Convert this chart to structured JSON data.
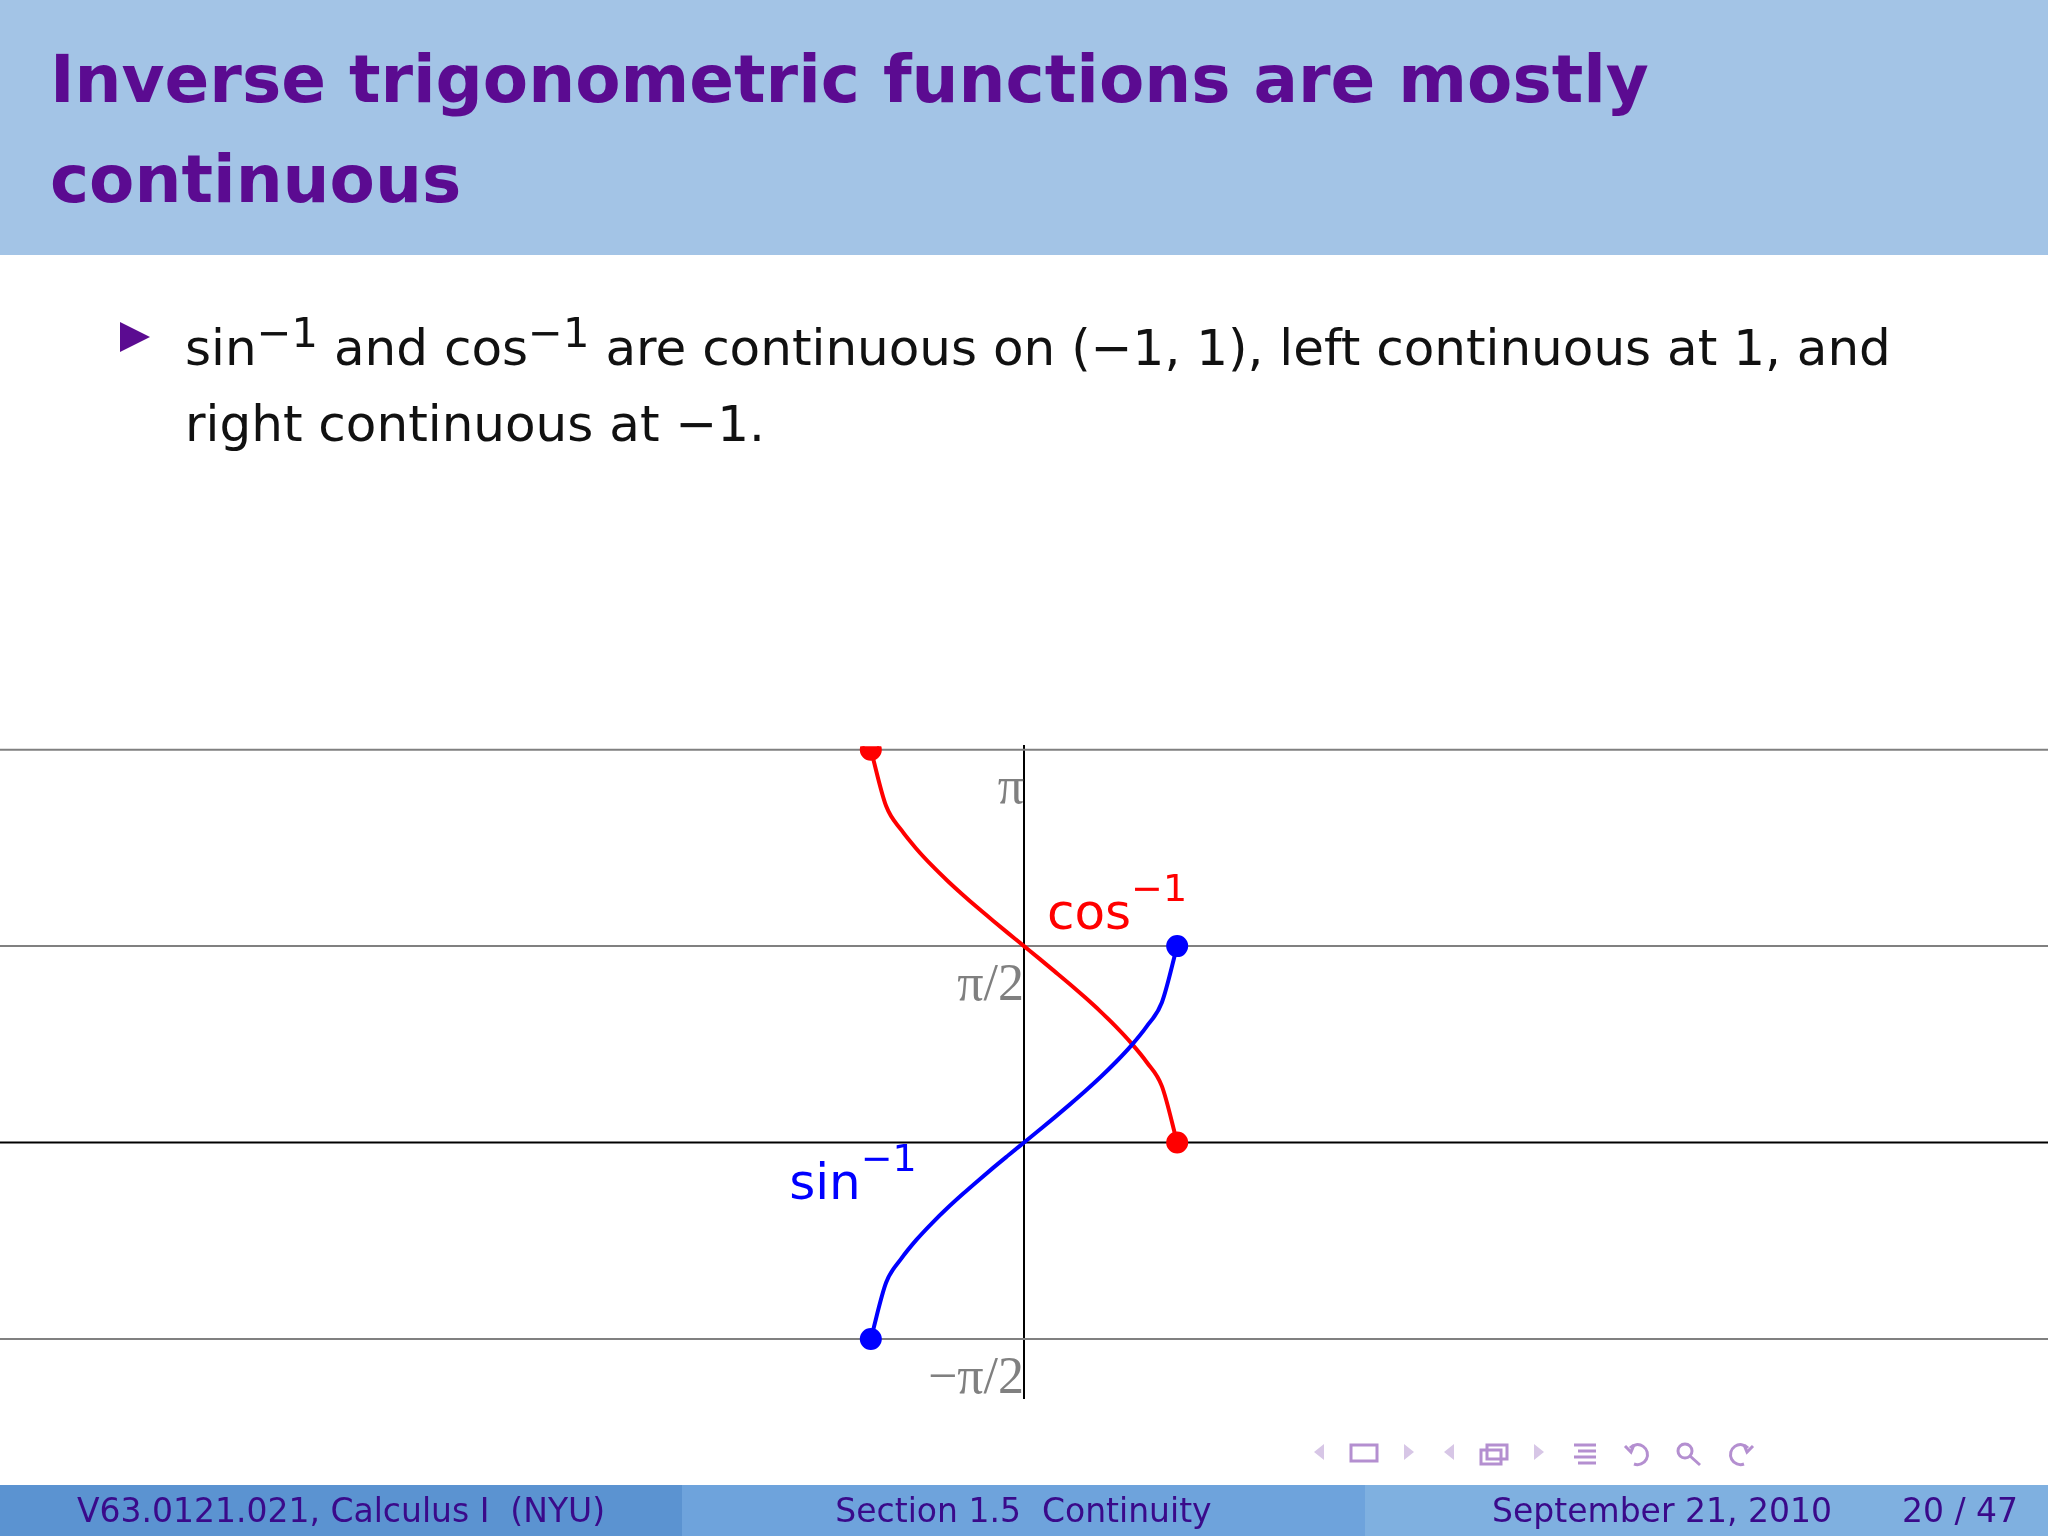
{
  "chart_data": {
    "type": "line",
    "title": "Inverse trigonometric functions are mostly continuous",
    "subtitle": "sin$^{−1}$ and cos$^{−1}$ are continuous on (−1, 1), left continuous at 1, and right continuous at −1.",
    "categories": [
      null,
      null,
      null,
      null,
      null,
      null,
      null,
      null,
      null,
      null,
      null,
      null,
      null,
      null,
      null,
      null,
      null,
      null,
      null,
      null,
      null,
      null,
      null,
      null,
      null,
      null,
      null,
      null,
      null,
      null,
      null,
      null,
      null,
      null,
      null,
      null,
      null,
      null,
      null,
      null,
      null,
      null,
      null,
      null,
      null,
      null,
      null,
      null,
      null,
      null,
      null,
      null,
      null,
      null,
      null,
      null,
      null,
      null,
      null,
      null,
      null,
      null,
      null,
      null,
      null,
      null,
      null,
      null,
      null,
      null,
      null,
      null,
      null,
      null,
      null,
      null,
      null,
      null,
      null,
      null,
      null,
      null,
      null,
      null,
      null,
      null,
      null,
      null,
      null,
      null,
      null,
      null,
      null,
      null,
      null,
      null,
      null,
      null,
      null,
      null,
      null,
      null,
      null,
      null,
      null,
      null,
      null,
      null,
      null,
      null,
      null,
      null,
      null,
      null,
      null,
      null,
      null,
      null,
      null,
      null,
      null,
      null,
      null,
      null,
      null,
      null,
      null,
      null,
      null,
      null,
      null,
      null,
      null
    ],
    "series": [
      {
        "name": "sin$^{−1}$",
        "color": "#0000ff",
        "values": [
          null,
          null,
          null,
          null,
          null,
          null,
          null,
          null,
          null,
          null,
          null,
          null,
          null,
          null,
          null,
          null,
          null,
          null,
          null,
          null,
          null,
          null,
          null,
          null,
          null,
          null,
          null,
          null,
          null,
          null,
          null,
          null,
          null,
          null,
          null,
          null,
          null,
          null,
          null,
          null,
          null,
          null,
          null,
          null,
          null,
          null,
          null,
          null,
          null,
          null,
          null,
          null,
          null,
          null,
          null,
          null,
          -1.571,
          -1.12,
          -0.927,
          -0.775,
          -0.644,
          -0.524,
          -0.412,
          -0.305,
          -0.201,
          -0.1,
          0,
          0.1,
          0.201,
          0.305,
          0.412,
          0.524,
          0.644,
          0.775,
          0.927,
          1.12,
          1.571,
          null,
          null,
          null,
          null,
          null,
          null,
          null,
          null,
          null,
          null,
          null,
          null,
          null,
          null,
          null,
          null,
          null,
          null,
          null,
          null,
          null,
          null,
          null,
          null,
          null,
          null,
          null,
          null,
          null,
          null,
          null,
          null,
          null,
          null,
          null,
          null,
          null,
          null,
          null,
          null,
          null,
          null,
          null,
          null,
          null,
          null,
          null,
          null,
          null,
          null,
          null,
          null,
          null,
          null,
          null,
          null
        ]
      },
      {
        "name": "cos$^{−1}$",
        "color": "#ff0000",
        "values": [
          null,
          null,
          null,
          null,
          null,
          null,
          null,
          null,
          null,
          null,
          null,
          null,
          null,
          null,
          null,
          null,
          null,
          null,
          null,
          null,
          null,
          null,
          null,
          null,
          null,
          null,
          null,
          null,
          null,
          null,
          null,
          null,
          null,
          null,
          null,
          null,
          null,
          null,
          null,
          null,
          null,
          null,
          null,
          null,
          null,
          null,
          null,
          null,
          null,
          null,
          null,
          null,
          null,
          null,
          null,
          null,
          3.142,
          2.691,
          2.498,
          2.346,
          2.214,
          2.094,
          1.982,
          1.875,
          1.772,
          1.671,
          1.571,
          1.471,
          1.369,
          1.266,
          1.159,
          1.047,
          0.927,
          0.795,
          0.644,
          0.451,
          0,
          null,
          null,
          null,
          null,
          null,
          null,
          null,
          null,
          null,
          null,
          null,
          null,
          null,
          null,
          null,
          null,
          null,
          null,
          null,
          null,
          null,
          null,
          null,
          null,
          null,
          null,
          null,
          null,
          null,
          null,
          null,
          null,
          null,
          null,
          null,
          null,
          null,
          null,
          null,
          null,
          null,
          null,
          null,
          null,
          null,
          null,
          null,
          null,
          null,
          null,
          null,
          null,
          null,
          null,
          null,
          null
        ]
      },
      {
        "type": "scatter",
        "marker": "circle",
        "color": "#0000ff",
        "values": [
          null,
          null,
          null,
          null,
          null,
          null,
          null,
          null,
          null,
          null,
          null,
          null,
          null,
          null,
          null,
          null,
          null,
          null,
          null,
          null,
          null,
          null,
          null,
          null,
          null,
          null,
          null,
          null,
          null,
          null,
          null,
          null,
          null,
          null,
          null,
          null,
          null,
          null,
          null,
          null,
          null,
          null,
          null,
          null,
          null,
          null,
          null,
          null,
          null,
          null,
          null,
          null,
          null,
          null,
          null,
          null,
          -1.571,
          null,
          null,
          null,
          null,
          null,
          null,
          null,
          null,
          null,
          null,
          null,
          null,
          null,
          null,
          null,
          null,
          null,
          null,
          null,
          1.571,
          null,
          null,
          null,
          null,
          null,
          null,
          null,
          null,
          null,
          null,
          null,
          null,
          null,
          null,
          null,
          null,
          null,
          null,
          null,
          null,
          null,
          null,
          null,
          null,
          null,
          null,
          null,
          null,
          null,
          null,
          null,
          null,
          null,
          null,
          null,
          null,
          null,
          null,
          null,
          null,
          null,
          null,
          null,
          null,
          null,
          null,
          null,
          null,
          null,
          null,
          null,
          null,
          null,
          null,
          null,
          null
        ]
      },
      {
        "type": "scatter",
        "marker": "circle",
        "color": "#ff0000",
        "values": [
          null,
          null,
          null,
          null,
          null,
          null,
          null,
          null,
          null,
          null,
          null,
          null,
          null,
          null,
          null,
          null,
          null,
          null,
          null,
          null,
          null,
          null,
          null,
          null,
          null,
          null,
          null,
          null,
          null,
          null,
          null,
          null,
          null,
          null,
          null,
          null,
          null,
          null,
          null,
          null,
          null,
          null,
          null,
          null,
          null,
          null,
          null,
          null,
          null,
          null,
          null,
          null,
          null,
          null,
          null,
          null,
          3.142,
          null,
          null,
          null,
          null,
          null,
          null,
          null,
          null,
          null,
          null,
          null,
          null,
          null,
          null,
          null,
          null,
          null,
          null,
          null,
          0,
          null,
          null,
          null,
          null,
          null,
          null,
          null,
          null,
          null,
          null,
          null,
          null,
          null,
          null,
          null,
          null,
          null,
          null,
          null,
          null,
          null,
          null,
          null,
          null,
          null,
          null,
          null,
          null,
          null,
          null,
          null,
          null,
          null,
          null,
          null,
          null,
          null,
          null,
          null,
          null,
          null,
          null,
          null,
          null,
          null,
          null,
          null,
          null,
          null,
          null,
          null,
          null,
          null,
          null,
          null,
          null
        ]
      }
    ],
    "ylim": [
      -2.05,
      3.17
    ],
    "yticks": [
      {
        "value": -1.571,
        "label": "−π/2"
      },
      {
        "value": 1.571,
        "label": "π/2"
      },
      {
        "value": 3.142,
        "label": "π"
      }
    ],
    "tick_labels": "y",
    "grid": "y",
    "marker": "none",
    "line_style": "solid",
    "legend": false,
    "annotations": [
      "V63.0121.021, Calculus I  (NYU)",
      "Section 1.5  Continuity",
      "September 21, 2010",
      "20 / 47"
    ]
  }
}
